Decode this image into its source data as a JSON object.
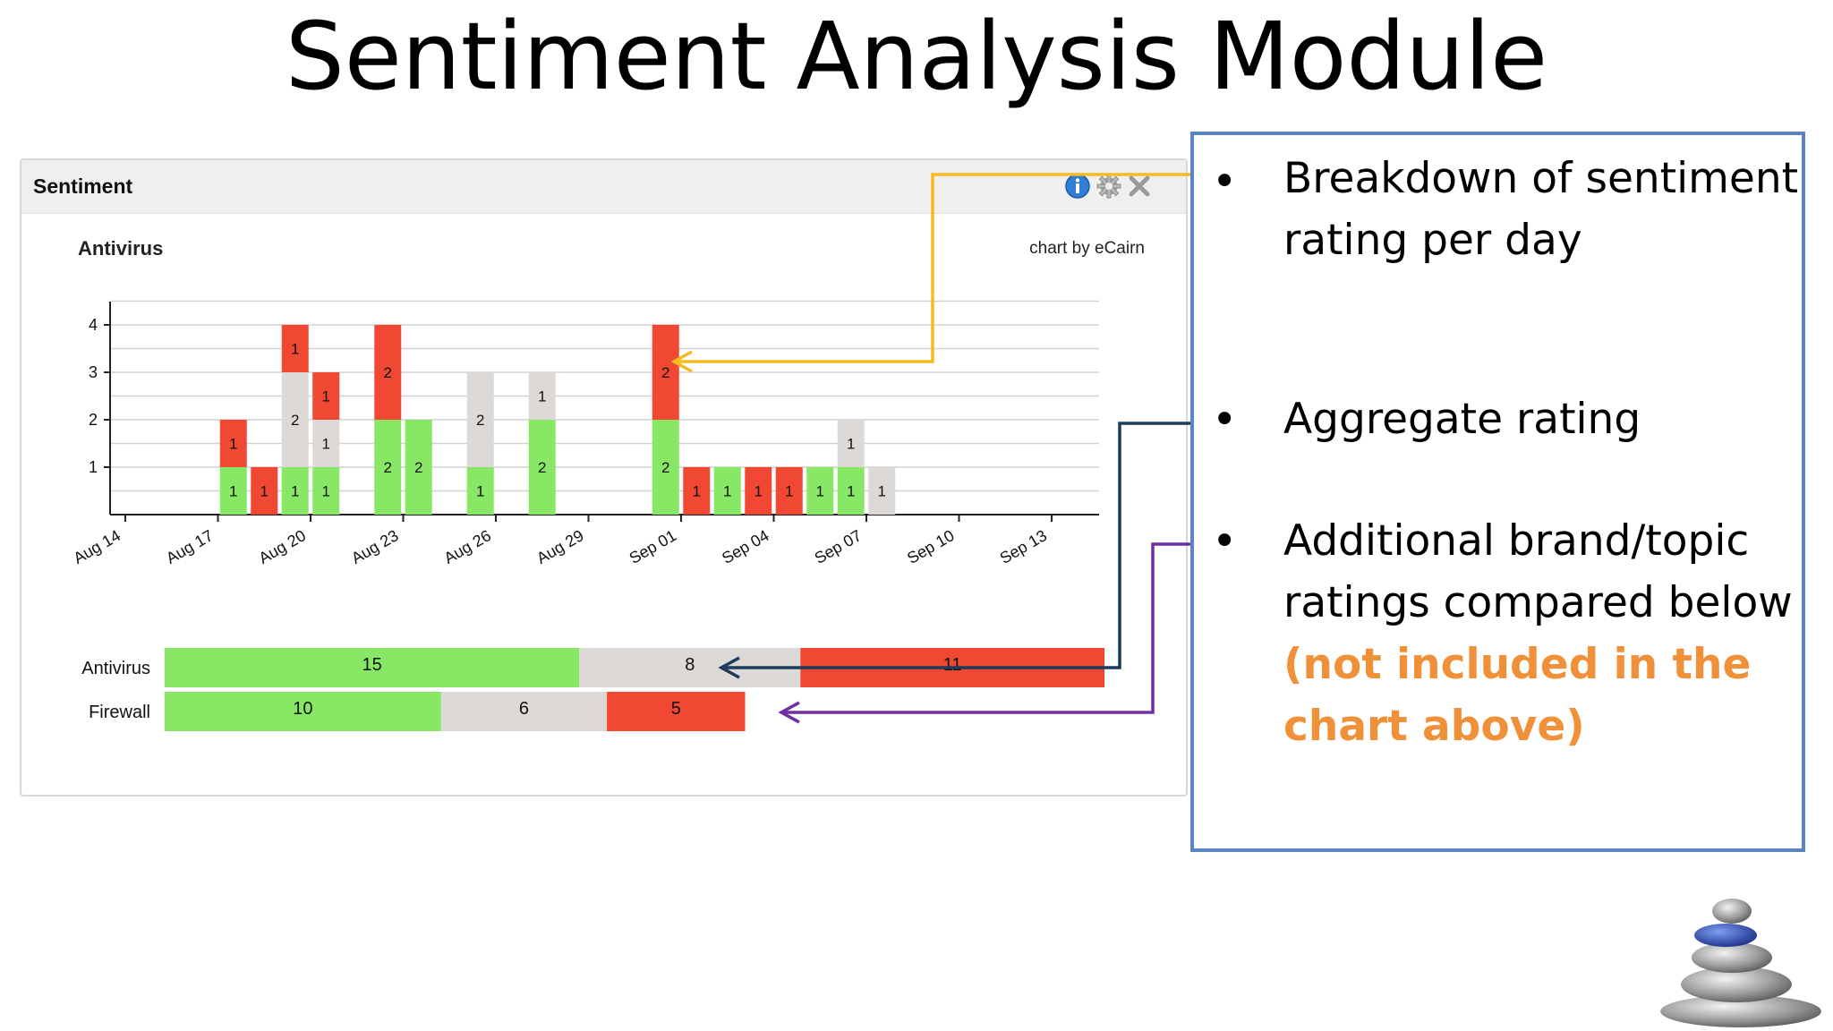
{
  "slide_title": "Sentiment Analysis Module",
  "panel": {
    "title": "Sentiment",
    "icons": [
      "info-icon",
      "gear-icon",
      "close-icon"
    ]
  },
  "callout": {
    "items": [
      {
        "bullet": "•",
        "text": "Breakdown of sentiment rating per day"
      },
      {
        "bullet": "•",
        "text": "Aggregate rating"
      },
      {
        "bullet": "•",
        "text": "Additional brand/topic ratings compared below",
        "highlight": "(not included in the chart above)"
      }
    ]
  },
  "colors": {
    "positive": "#88e865",
    "neutral": "#ddd9d6",
    "negative": "#f04832",
    "arrow_yellow": "#f5bb1f",
    "arrow_navy": "#1d3b5a",
    "arrow_purple": "#7130a0",
    "callout_border": "#5b84c2",
    "highlight": "#f0913a"
  },
  "chart_data": [
    {
      "type": "bar",
      "stacked": true,
      "title": "Antivirus",
      "credit": "chart by eCairn",
      "x_tick_labels": [
        "Aug 14",
        "Aug 17",
        "Aug 20",
        "Aug 23",
        "Aug 26",
        "Aug 29",
        "Sep 01",
        "Sep 04",
        "Sep 07",
        "Sep 10",
        "Sep 13"
      ],
      "yticks": [
        1,
        2,
        3,
        4
      ],
      "ylim": [
        0,
        4
      ],
      "grid": true,
      "x": [
        "Aug 17",
        "Aug 18",
        "Aug 19",
        "Aug 20",
        "Aug 22",
        "Aug 23",
        "Aug 25",
        "Aug 27",
        "Aug 31",
        "Sep 01",
        "Sep 02",
        "Sep 03",
        "Sep 04",
        "Sep 05",
        "Sep 06",
        "Sep 07"
      ],
      "series": [
        {
          "name": "positive",
          "color": "#88e865",
          "values": [
            1,
            0,
            1,
            1,
            2,
            2,
            1,
            2,
            2,
            0,
            1,
            0,
            0,
            1,
            1,
            0
          ]
        },
        {
          "name": "neutral",
          "color": "#ddd9d6",
          "values": [
            0,
            0,
            2,
            1,
            0,
            0,
            2,
            1,
            0,
            0,
            0,
            0,
            0,
            0,
            1,
            1
          ]
        },
        {
          "name": "negative",
          "color": "#f04832",
          "values": [
            1,
            1,
            1,
            1,
            2,
            0,
            0,
            0,
            2,
            1,
            0,
            1,
            1,
            0,
            0,
            0
          ]
        }
      ]
    },
    {
      "type": "bar",
      "orientation": "horizontal",
      "stacked": true,
      "categories": [
        "Antivirus",
        "Firewall"
      ],
      "series": [
        {
          "name": "positive",
          "color": "#88e865",
          "values": [
            15,
            10
          ]
        },
        {
          "name": "neutral",
          "color": "#ddd9d6",
          "values": [
            8,
            6
          ]
        },
        {
          "name": "negative",
          "color": "#f04832",
          "values": [
            11,
            5
          ]
        }
      ]
    }
  ]
}
